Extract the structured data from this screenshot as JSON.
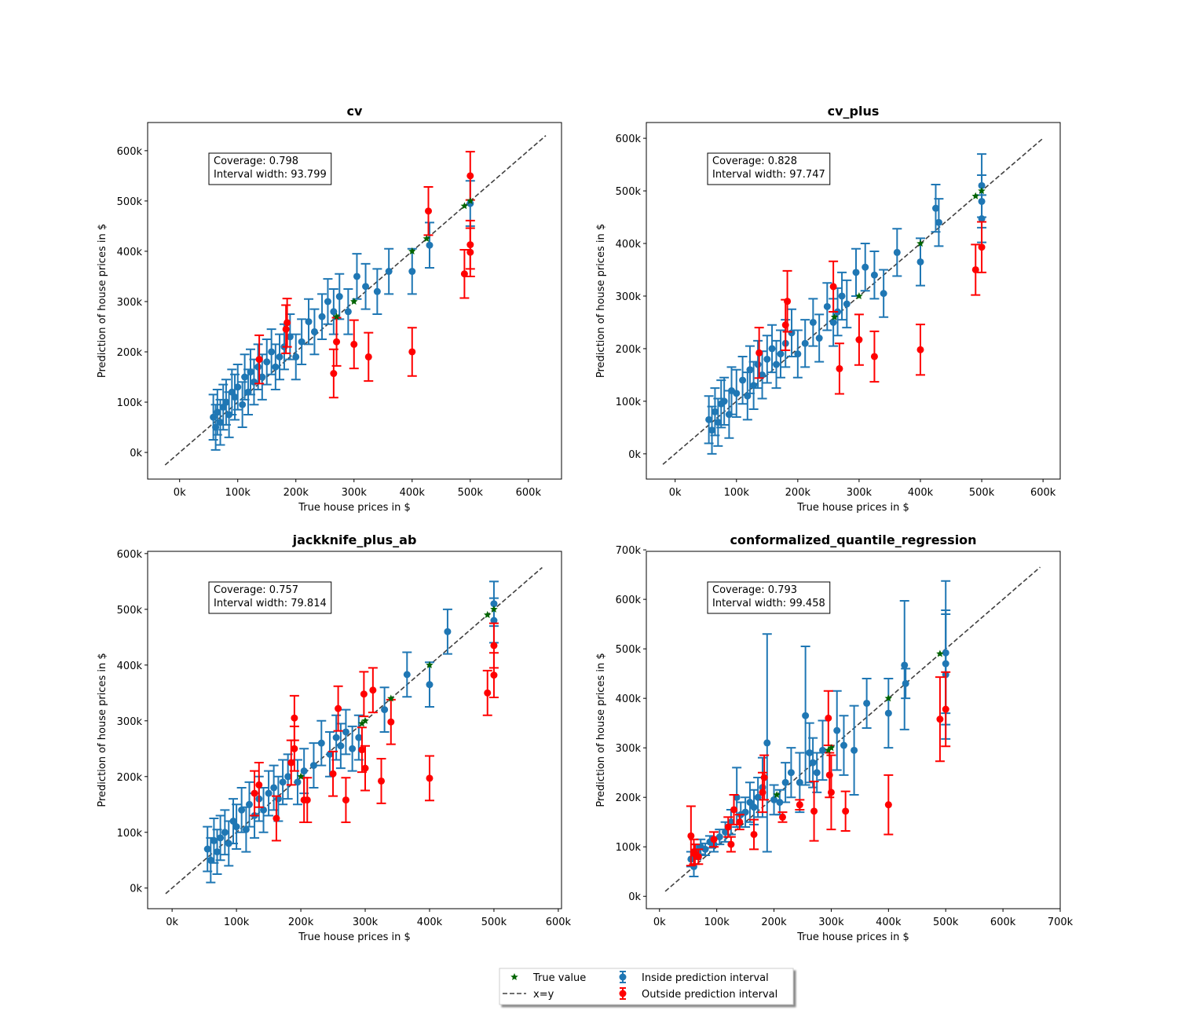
{
  "legend": [
    {
      "name": "True value",
      "color": "#006400",
      "marker": "star"
    },
    {
      "name": "x=y",
      "color": "#404040",
      "marker": "dashed"
    },
    {
      "name": "Inside prediction interval",
      "color": "#1f77b4",
      "marker": "errorbar"
    },
    {
      "name": "Outside prediction interval",
      "color": "#ff0000",
      "marker": "errorbar"
    }
  ],
  "chart_data": [
    {
      "type": "scatter",
      "title": "cv",
      "xlabel": "True house prices in $",
      "ylabel": "Prediction of house prices in $",
      "annotation": [
        "Coverage: 0.798",
        "Interval width: 93.799"
      ],
      "xlim": [
        -55,
        657
      ],
      "ylim": [
        -53,
        656
      ],
      "xticks": [
        {
          "value": 0,
          "label": "0k"
        },
        {
          "value": 100,
          "label": "100k"
        },
        {
          "value": 200,
          "label": "200k"
        },
        {
          "value": 300,
          "label": "300k"
        },
        {
          "value": 400,
          "label": "400k"
        },
        {
          "value": 500,
          "label": "500k"
        },
        {
          "value": 600,
          "label": "600k"
        }
      ],
      "yticks": [
        {
          "value": 0,
          "label": "0k"
        },
        {
          "value": 100,
          "label": "100k"
        },
        {
          "value": 200,
          "label": "200k"
        },
        {
          "value": 300,
          "label": "300k"
        },
        {
          "value": 400,
          "label": "400k"
        },
        {
          "value": 500,
          "label": "500k"
        },
        {
          "value": 600,
          "label": "600k"
        }
      ],
      "series": [
        {
          "x": [
            270,
            300,
            400,
            425,
            490,
            500
          ],
          "values": [
            270,
            300,
            400,
            425,
            490,
            500
          ]
        },
        {
          "x": [
            -25,
            630
          ],
          "values": [
            -25,
            630
          ]
        },
        {
          "x": [
            58,
            62,
            65,
            70,
            75,
            80,
            85,
            90,
            95,
            100,
            108,
            112,
            118,
            122,
            128,
            135,
            142,
            150,
            158,
            165,
            172,
            180,
            190,
            200,
            210,
            222,
            232,
            245,
            255,
            265,
            275,
            290,
            305,
            320,
            340,
            360,
            400,
            430,
            500
          ],
          "values": [
            70,
            50,
            80,
            60,
            90,
            100,
            75,
            120,
            110,
            130,
            95,
            150,
            120,
            160,
            140,
            170,
            150,
            180,
            200,
            170,
            190,
            210,
            230,
            190,
            220,
            260,
            240,
            270,
            300,
            280,
            310,
            280,
            350,
            330,
            320,
            360,
            360,
            412,
            495
          ],
          "errors": [
            45,
            45,
            45,
            45,
            45,
            45,
            45,
            45,
            45,
            45,
            45,
            45,
            45,
            45,
            45,
            45,
            45,
            45,
            45,
            45,
            45,
            45,
            45,
            45,
            45,
            45,
            45,
            45,
            45,
            45,
            45,
            45,
            45,
            45,
            45,
            45,
            45,
            45,
            45
          ]
        },
        {
          "x": [
            137,
            183,
            185,
            265,
            270,
            300,
            325,
            400,
            428,
            490,
            500,
            500,
            500
          ],
          "values": [
            185,
            245,
            258,
            157,
            220,
            215,
            190,
            200,
            480,
            355,
            550,
            413,
            398
          ],
          "errors": [
            48,
            48,
            48,
            48,
            48,
            48,
            48,
            48,
            48,
            48,
            48,
            48,
            48
          ]
        }
      ]
    },
    {
      "type": "scatter",
      "title": "cv_plus",
      "xlabel": "True house prices in $",
      "ylabel": "Prediction of house prices in $",
      "annotation": [
        "Coverage: 0.828",
        "Interval width: 97.747"
      ],
      "xlim": [
        -47,
        628
      ],
      "ylim": [
        -48,
        630
      ],
      "xticks": [
        {
          "value": 0,
          "label": "0k"
        },
        {
          "value": 100,
          "label": "100k"
        },
        {
          "value": 200,
          "label": "200k"
        },
        {
          "value": 300,
          "label": "300k"
        },
        {
          "value": 400,
          "label": "400k"
        },
        {
          "value": 500,
          "label": "500k"
        },
        {
          "value": 600,
          "label": "600k"
        }
      ],
      "yticks": [
        {
          "value": 0,
          "label": "0k"
        },
        {
          "value": 100,
          "label": "100k"
        },
        {
          "value": 200,
          "label": "200k"
        },
        {
          "value": 300,
          "label": "300k"
        },
        {
          "value": 400,
          "label": "400k"
        },
        {
          "value": 500,
          "label": "500k"
        },
        {
          "value": 600,
          "label": "600k"
        }
      ],
      "series": [
        {
          "x": [
            260,
            300,
            400,
            490,
            500
          ],
          "values": [
            260,
            300,
            400,
            490,
            500
          ]
        },
        {
          "x": [
            -20,
            600
          ],
          "values": [
            -20,
            600
          ]
        },
        {
          "x": [
            55,
            60,
            65,
            70,
            75,
            80,
            88,
            92,
            100,
            110,
            118,
            122,
            128,
            135,
            142,
            150,
            158,
            165,
            172,
            180,
            190,
            200,
            212,
            225,
            235,
            248,
            258,
            265,
            272,
            280,
            295,
            310,
            325,
            340,
            362,
            400,
            425,
            430,
            500,
            500,
            500
          ],
          "values": [
            65,
            45,
            80,
            60,
            95,
            100,
            75,
            120,
            115,
            140,
            110,
            160,
            130,
            170,
            150,
            180,
            200,
            170,
            190,
            210,
            230,
            190,
            210,
            250,
            220,
            280,
            250,
            270,
            300,
            285,
            345,
            355,
            340,
            305,
            383,
            365,
            467,
            440,
            510,
            480,
            447
          ],
          "errors": [
            45,
            45,
            45,
            45,
            45,
            45,
            45,
            45,
            45,
            45,
            45,
            45,
            45,
            45,
            45,
            45,
            45,
            45,
            45,
            45,
            45,
            45,
            45,
            45,
            45,
            45,
            45,
            45,
            45,
            45,
            45,
            45,
            45,
            45,
            45,
            45,
            45,
            45,
            60,
            50,
            45
          ]
        },
        {
          "x": [
            137,
            180,
            183,
            258,
            268,
            300,
            325,
            400,
            490,
            500
          ],
          "values": [
            192,
            245,
            290,
            318,
            162,
            217,
            185,
            198,
            350,
            393
          ],
          "errors": [
            48,
            48,
            58,
            48,
            48,
            48,
            48,
            48,
            48,
            48
          ]
        }
      ]
    },
    {
      "type": "scatter",
      "title": "jackknife_plus_ab",
      "xlabel": "True house prices in $",
      "ylabel": "Prediction of house prices in $",
      "annotation": [
        "Coverage: 0.757",
        "Interval width: 79.814"
      ],
      "xlim": [
        -38,
        605
      ],
      "ylim": [
        -37,
        604
      ],
      "xticks": [
        {
          "value": 0,
          "label": "0k"
        },
        {
          "value": 100,
          "label": "100k"
        },
        {
          "value": 200,
          "label": "200k"
        },
        {
          "value": 300,
          "label": "300k"
        },
        {
          "value": 400,
          "label": "400k"
        },
        {
          "value": 500,
          "label": "500k"
        },
        {
          "value": 600,
          "label": "600k"
        }
      ],
      "yticks": [
        {
          "value": 0,
          "label": "0k"
        },
        {
          "value": 100,
          "label": "100k"
        },
        {
          "value": 200,
          "label": "200k"
        },
        {
          "value": 300,
          "label": "300k"
        },
        {
          "value": 400,
          "label": "400k"
        },
        {
          "value": 500,
          "label": "500k"
        },
        {
          "value": 600,
          "label": "600k"
        }
      ],
      "series": [
        {
          "x": [
            200,
            295,
            300,
            340,
            400,
            490,
            500
          ],
          "values": [
            200,
            295,
            300,
            340,
            400,
            490,
            500
          ]
        },
        {
          "x": [
            -10,
            575
          ],
          "values": [
            -10,
            575
          ]
        },
        {
          "x": [
            55,
            60,
            65,
            70,
            75,
            82,
            88,
            95,
            100,
            108,
            115,
            120,
            128,
            135,
            142,
            150,
            158,
            165,
            172,
            180,
            195,
            205,
            220,
            232,
            245,
            255,
            262,
            270,
            280,
            290,
            330,
            365,
            400,
            428,
            500,
            500
          ],
          "values": [
            70,
            50,
            85,
            65,
            90,
            100,
            80,
            120,
            110,
            140,
            105,
            150,
            130,
            160,
            140,
            170,
            180,
            160,
            190,
            200,
            190,
            210,
            220,
            260,
            240,
            270,
            255,
            280,
            250,
            270,
            320,
            383,
            365,
            460,
            510,
            480
          ],
          "errors": [
            40,
            40,
            40,
            40,
            40,
            40,
            40,
            40,
            40,
            40,
            40,
            40,
            40,
            40,
            40,
            40,
            40,
            40,
            40,
            40,
            40,
            40,
            40,
            40,
            40,
            40,
            40,
            40,
            40,
            40,
            40,
            40,
            40,
            40,
            40,
            40
          ]
        },
        {
          "x": [
            128,
            135,
            162,
            185,
            190,
            190,
            205,
            210,
            250,
            258,
            270,
            295,
            298,
            300,
            312,
            325,
            340,
            400,
            490,
            500,
            500
          ],
          "values": [
            170,
            185,
            125,
            225,
            305,
            250,
            158,
            158,
            205,
            322,
            158,
            248,
            348,
            215,
            355,
            192,
            298,
            197,
            350,
            435,
            382
          ],
          "errors": [
            40,
            40,
            40,
            40,
            40,
            40,
            40,
            40,
            40,
            40,
            40,
            40,
            40,
            40,
            40,
            40,
            40,
            40,
            40,
            40,
            40
          ]
        }
      ]
    },
    {
      "type": "scatter",
      "title": "conformalized_quantile_regression",
      "xlabel": "True house prices in $",
      "ylabel": "Prediction of house prices in $",
      "annotation": [
        "Coverage: 0.793",
        "Interval width: 99.458"
      ],
      "xlim": [
        -23,
        700
      ],
      "ylim": [
        -25,
        697
      ],
      "xticks": [
        {
          "value": 0,
          "label": "0k"
        },
        {
          "value": 100,
          "label": "100k"
        },
        {
          "value": 200,
          "label": "200k"
        },
        {
          "value": 300,
          "label": "300k"
        },
        {
          "value": 400,
          "label": "400k"
        },
        {
          "value": 500,
          "label": "500k"
        },
        {
          "value": 600,
          "label": "600k"
        },
        {
          "value": 700,
          "label": "700k"
        }
      ],
      "yticks": [
        {
          "value": 0,
          "label": "0k"
        },
        {
          "value": 100,
          "label": "100k"
        },
        {
          "value": 200,
          "label": "200k"
        },
        {
          "value": 300,
          "label": "300k"
        },
        {
          "value": 400,
          "label": "400k"
        },
        {
          "value": 500,
          "label": "500k"
        },
        {
          "value": 600,
          "label": "600k"
        },
        {
          "value": 700,
          "label": "700k"
        }
      ],
      "series": [
        {
          "x": [
            205,
            295,
            300,
            400,
            490
          ],
          "values": [
            205,
            295,
            300,
            400,
            490
          ]
        },
        {
          "x": [
            10,
            665
          ],
          "values": [
            10,
            665
          ]
        },
        {
          "x": [
            55,
            60,
            65,
            72,
            80,
            88,
            95,
            105,
            115,
            125,
            135,
            142,
            150,
            158,
            165,
            172,
            180,
            188,
            200,
            210,
            220,
            230,
            245,
            255,
            262,
            268,
            275,
            285,
            310,
            322,
            340,
            362,
            400,
            428,
            430,
            500,
            500,
            500
          ],
          "values": [
            75,
            60,
            90,
            100,
            95,
            110,
            105,
            120,
            130,
            150,
            200,
            165,
            170,
            190,
            180,
            200,
            220,
            310,
            195,
            190,
            230,
            250,
            230,
            365,
            290,
            270,
            250,
            295,
            335,
            305,
            295,
            390,
            370,
            467,
            430,
            492,
            470,
            448
          ],
          "errors": [
            15,
            20,
            15,
            15,
            12,
            12,
            15,
            15,
            20,
            25,
            60,
            25,
            30,
            40,
            35,
            40,
            60,
            220,
            30,
            25,
            40,
            50,
            60,
            140,
            60,
            50,
            40,
            60,
            80,
            60,
            90,
            50,
            70,
            130,
            30,
            145,
            100,
            130
          ]
        },
        {
          "x": [
            55,
            60,
            62,
            68,
            95,
            120,
            125,
            130,
            140,
            165,
            180,
            183,
            215,
            245,
            270,
            295,
            297,
            300,
            325,
            400,
            490,
            500
          ],
          "values": [
            122,
            90,
            85,
            80,
            115,
            140,
            105,
            175,
            150,
            125,
            210,
            240,
            160,
            185,
            172,
            360,
            245,
            210,
            172,
            185,
            358,
            378
          ],
          "errors": [
            60,
            25,
            20,
            15,
            15,
            20,
            15,
            30,
            15,
            30,
            40,
            45,
            10,
            10,
            60,
            55,
            45,
            75,
            40,
            60,
            85,
            75
          ]
        }
      ]
    }
  ]
}
